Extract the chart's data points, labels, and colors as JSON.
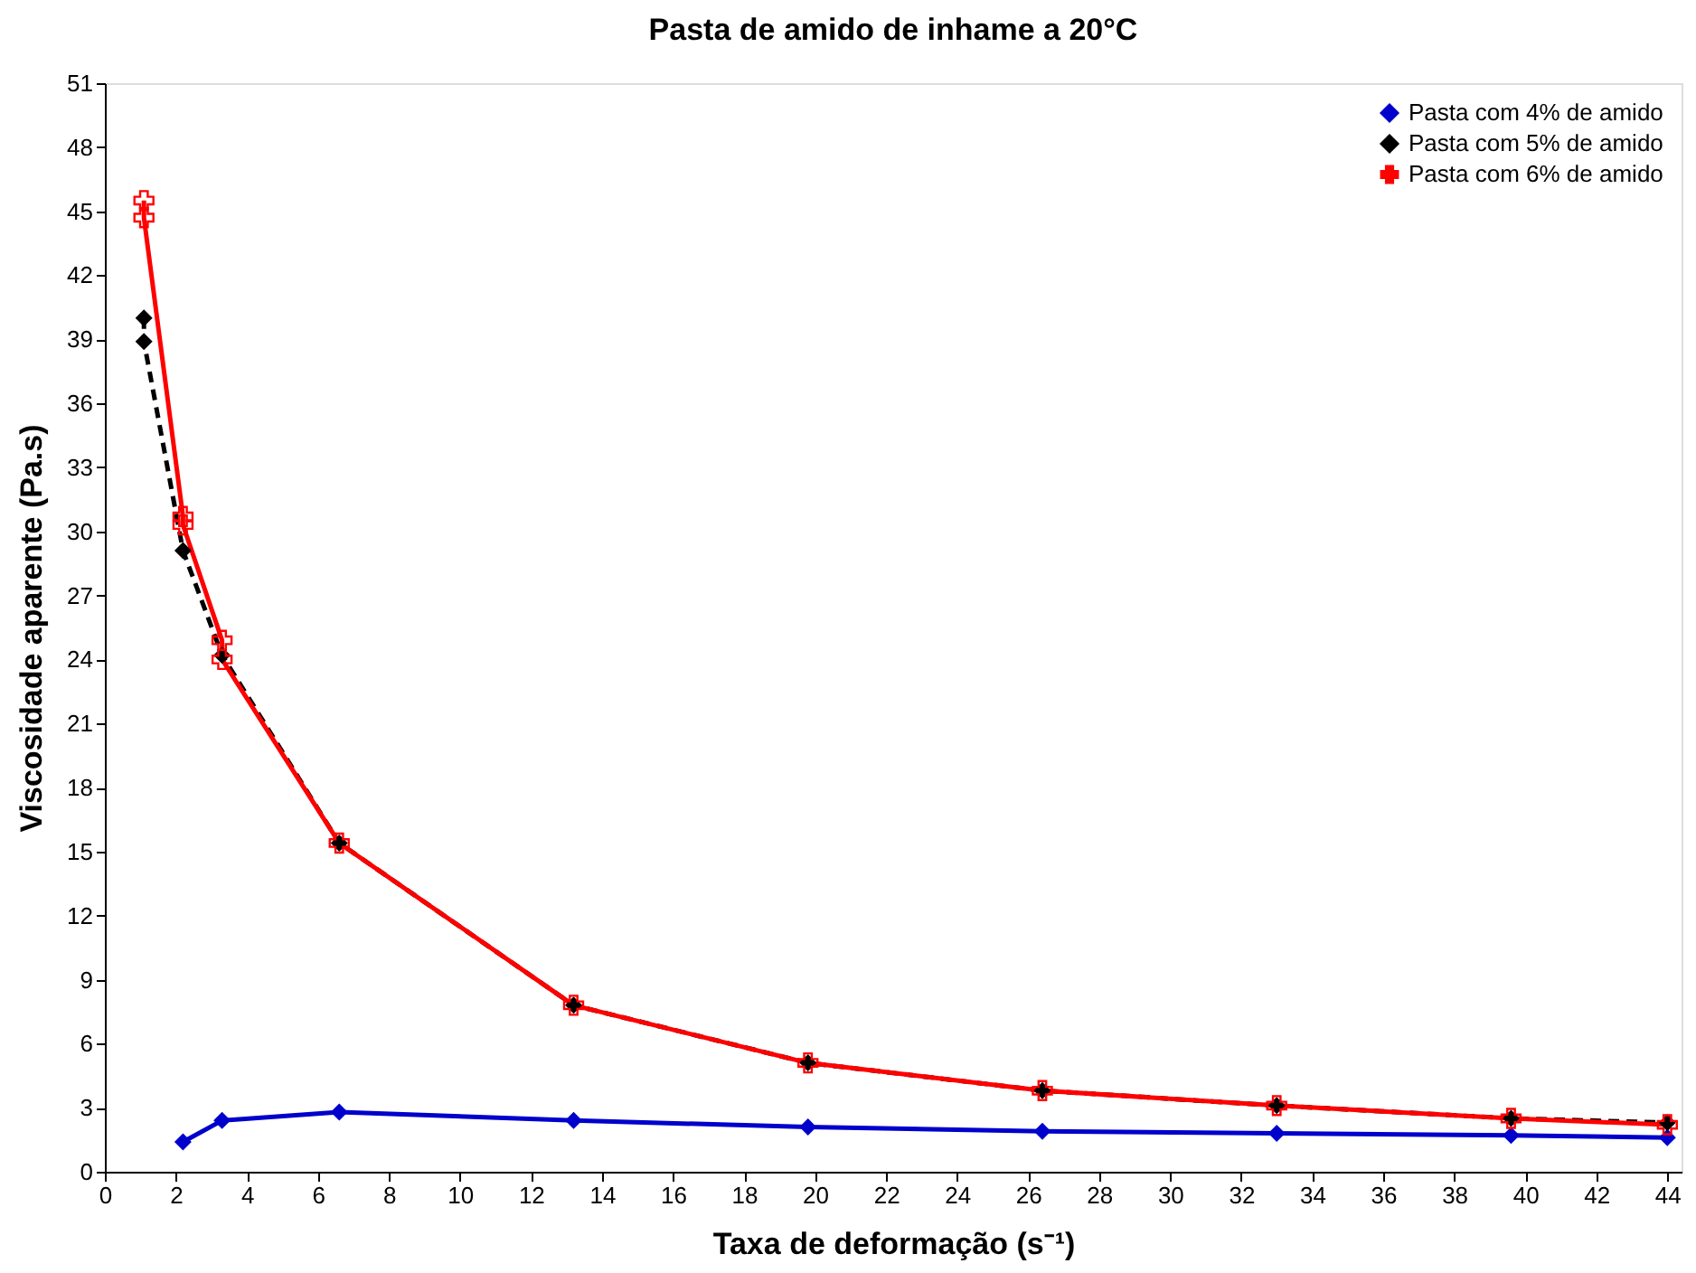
{
  "chart_data": {
    "type": "line",
    "title": "Pasta de amido de inhame a 20°C",
    "xlabel": "Taxa de deformação (s⁻¹)",
    "ylabel": "Viscosidade aparente (Pa.s)",
    "xlim": [
      0,
      44.4
    ],
    "xticks": [
      0,
      2,
      4,
      6,
      8,
      10,
      12,
      14,
      16,
      18,
      20,
      22,
      24,
      26,
      28,
      30,
      32,
      34,
      36,
      38,
      40,
      42,
      44
    ],
    "ylim": [
      0,
      51
    ],
    "yticks": [
      0,
      3,
      6,
      9,
      12,
      15,
      18,
      21,
      24,
      27,
      30,
      33,
      36,
      39,
      42,
      45,
      48,
      51
    ],
    "grid": false,
    "legend": "top right",
    "series": [
      {
        "name": "Pasta com 4% de amido",
        "color": "#0000cc",
        "marker": "diamond",
        "line_style": "solid",
        "x": [
          2.2,
          3.3,
          6.6,
          13.2,
          19.8,
          26.4,
          33,
          39.6,
          44
        ],
        "values": [
          1.4,
          2.4,
          2.8,
          2.4,
          2.1,
          1.9,
          1.8,
          1.7,
          1.6
        ]
      },
      {
        "name": "Pasta com 5% de amido",
        "color": "#000000",
        "marker": "diamond",
        "line_style": "dashed",
        "x": [
          1.1,
          1.1,
          2.2,
          3.3,
          6.6,
          13.2,
          19.8,
          26.4,
          33,
          39.6,
          44
        ],
        "values": [
          40.0,
          38.9,
          29.1,
          24.2,
          15.4,
          7.8,
          5.1,
          3.8,
          3.1,
          2.5,
          2.3
        ]
      },
      {
        "name": "Pasta com 6% de amido",
        "color": "#ff0000",
        "marker": "cross",
        "line_style": "solid",
        "x": [
          1.1,
          1.1,
          2.2,
          2.2,
          3.3,
          3.3,
          6.6,
          13.2,
          19.8,
          26.4,
          33,
          39.6,
          44
        ],
        "values": [
          45.5,
          44.7,
          30.7,
          30.3,
          24.9,
          24.0,
          15.4,
          7.8,
          5.1,
          3.8,
          3.1,
          2.5,
          2.2
        ]
      }
    ]
  }
}
